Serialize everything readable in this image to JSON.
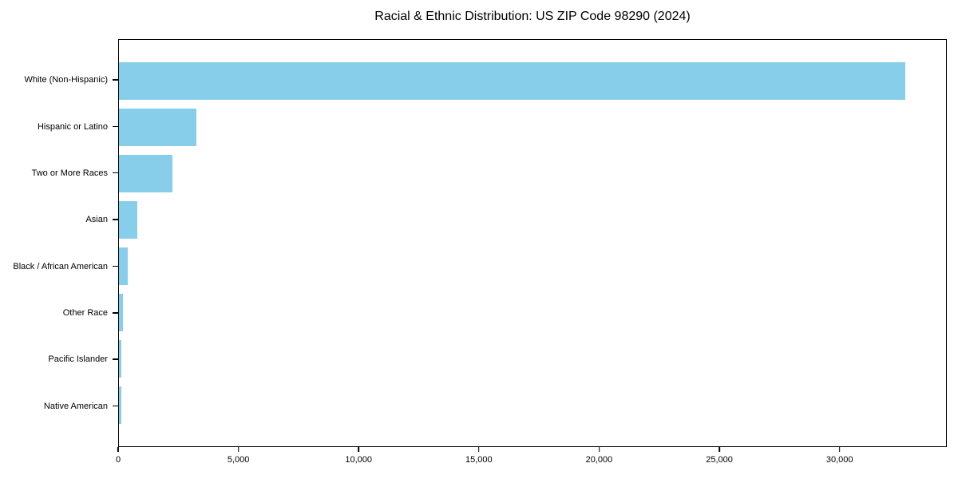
{
  "chart_data": {
    "type": "bar",
    "orientation": "horizontal",
    "title": "Racial & Ethnic Distribution: US ZIP Code 98290 (2024)",
    "categories": [
      "White (Non-Hispanic)",
      "Hispanic or Latino",
      "Two or More Races",
      "Asian",
      "Black / African American",
      "Other Race",
      "Pacific Islander",
      "Native American"
    ],
    "values": [
      32750,
      3230,
      2240,
      750,
      380,
      150,
      90,
      100
    ],
    "xlabel": "",
    "ylabel": "",
    "xlim": [
      0,
      34460
    ],
    "xticks": {
      "values": [
        0,
        5000,
        10000,
        15000,
        20000,
        25000,
        30000
      ],
      "labels": [
        "0",
        "5,000",
        "10,000",
        "15,000",
        "20,000",
        "25,000",
        "30,000"
      ]
    },
    "grid": false,
    "legend": null,
    "bar_color": "#87CEEB",
    "axis_color": "#000000",
    "background_color": "#FFFFFF"
  }
}
